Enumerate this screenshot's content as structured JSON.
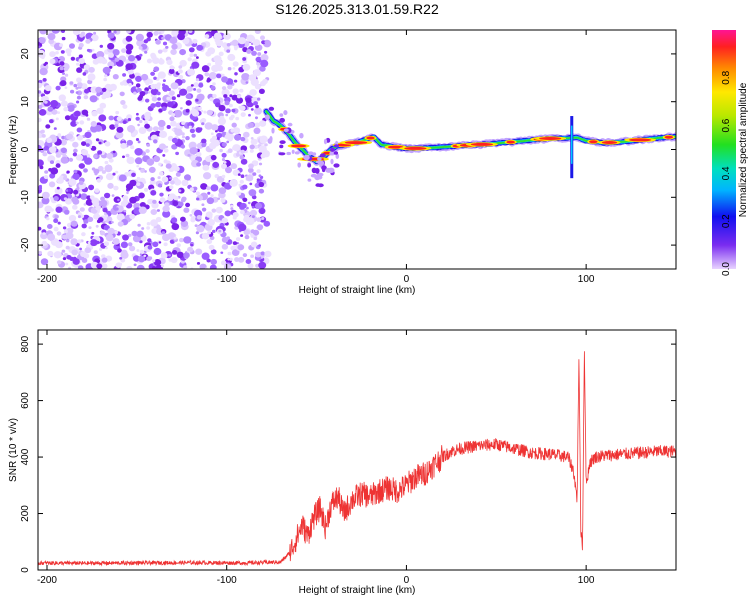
{
  "title": "S126.2025.313.01.59.R22",
  "chart_data": [
    {
      "type": "heatmap",
      "panel": "top",
      "xlabel": "Height of straight line (km)",
      "ylabel": "Frequency (Hz)",
      "xlim": [
        -205,
        150
      ],
      "ylim": [
        -25,
        25
      ],
      "xticks": [
        -200,
        -100,
        0,
        100
      ],
      "yticks": [
        -20,
        -10,
        0,
        10,
        20
      ],
      "colorbar": {
        "label": "Normalized spectral amplitude",
        "range": [
          0,
          1
        ],
        "ticks": [
          0.0,
          0.2,
          0.4,
          0.6,
          0.8
        ]
      },
      "noise_region_x": [
        -205,
        -77
      ],
      "ridge": {
        "x": [
          -78,
          -74,
          -70,
          -66,
          -62,
          -58,
          -54,
          -50,
          -46,
          -42,
          -38,
          -34,
          -30,
          -26,
          -22,
          -18,
          -14,
          -10,
          -6,
          -2,
          2,
          10,
          20,
          30,
          40,
          50,
          60,
          70,
          80,
          90,
          95,
          100,
          110,
          120,
          130,
          140,
          150
        ],
        "y": [
          8,
          6,
          5,
          3.5,
          1.5,
          0,
          -1.5,
          -2.5,
          -1.5,
          0,
          0.8,
          1,
          1.3,
          1.6,
          2.2,
          2.6,
          1,
          0.8,
          0.5,
          0.3,
          0.2,
          0.3,
          0.5,
          0.8,
          1,
          1.3,
          1.6,
          2,
          2.3,
          2.4,
          2.5,
          1.8,
          1.4,
          1.6,
          2,
          2.4,
          2.7
        ]
      }
    },
    {
      "type": "line",
      "panel": "bottom",
      "xlabel": "Height of straight line (km)",
      "ylabel": "SNR (10 * v/v)",
      "xlim": [
        -205,
        150
      ],
      "ylim": [
        0,
        850
      ],
      "xticks": [
        -200,
        -100,
        0,
        100
      ],
      "yticks": [
        0,
        200,
        400,
        600,
        800
      ],
      "series": [
        {
          "name": "SNR",
          "color": "#ee3333",
          "x": [
            -205,
            -180,
            -150,
            -120,
            -90,
            -70,
            -65,
            -62,
            -58,
            -55,
            -52,
            -48,
            -45,
            -42,
            -38,
            -35,
            -30,
            -25,
            -20,
            -15,
            -10,
            -5,
            0,
            5,
            10,
            15,
            20,
            25,
            30,
            40,
            50,
            60,
            70,
            80,
            85,
            90,
            93,
            95,
            96,
            97,
            98,
            99,
            100,
            102,
            105,
            110,
            120,
            130,
            140,
            150
          ],
          "y": [
            25,
            24,
            25,
            26,
            25,
            28,
            60,
            100,
            160,
            120,
            180,
            220,
            150,
            230,
            260,
            200,
            250,
            270,
            260,
            280,
            290,
            280,
            300,
            330,
            340,
            370,
            400,
            420,
            430,
            440,
            445,
            430,
            415,
            410,
            405,
            400,
            350,
            250,
            780,
            150,
            80,
            800,
            300,
            380,
            400,
            405,
            410,
            415,
            420,
            420
          ]
        }
      ]
    }
  ]
}
